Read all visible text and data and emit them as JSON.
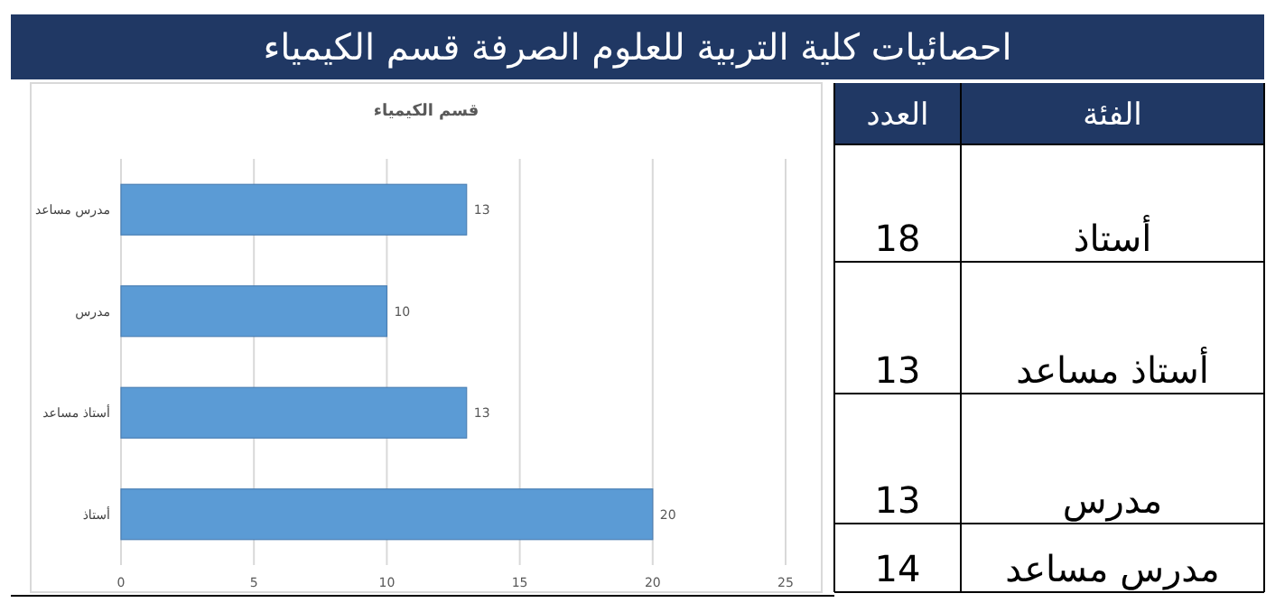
{
  "chart_data": {
    "type": "bar",
    "orientation": "horizontal",
    "title": "احصائيات كلية التربية للعلوم الصرفة قسم الكيمياء",
    "subtitle": "قسم  الكيمياء",
    "categories": [
      "مدرس مساعد",
      "مدرس",
      "أستاذ مساعد",
      "أستاذ"
    ],
    "values": [
      13,
      10,
      13,
      20
    ],
    "color": "#5b9bd5",
    "data_labels": true,
    "xlim": [
      0,
      25
    ],
    "xticks": [
      0,
      5,
      10,
      15,
      20,
      25
    ],
    "grid": "x",
    "annotations": [
      "الفئة",
      "العدد",
      "أستاذ",
      "18",
      "أستاذ مساعد",
      "13",
      "مدرس",
      "13",
      "مدرس مساعد",
      "14"
    ]
  }
}
